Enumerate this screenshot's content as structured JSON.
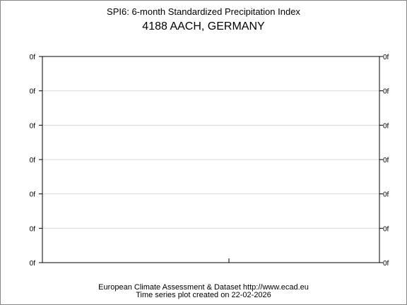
{
  "chart_data": {
    "type": "line",
    "title": "SPI6: 6-month Standardized Precipitation Index",
    "subtitle": "4188 AACH, GERMANY",
    "y_tick_labels": [
      "0f",
      "0f",
      "0f",
      "0f",
      "0f",
      "0f",
      "0f"
    ],
    "grid": "horizontal",
    "series": [],
    "xlabel": "",
    "ylabel": ""
  },
  "footer": {
    "line1": "European Climate Assessment & Dataset  http://www.ecad.eu",
    "line2": "Time series plot created on 22-02-2026"
  },
  "colors": {
    "gridline": "#d9d9d9",
    "axis": "#000000"
  }
}
